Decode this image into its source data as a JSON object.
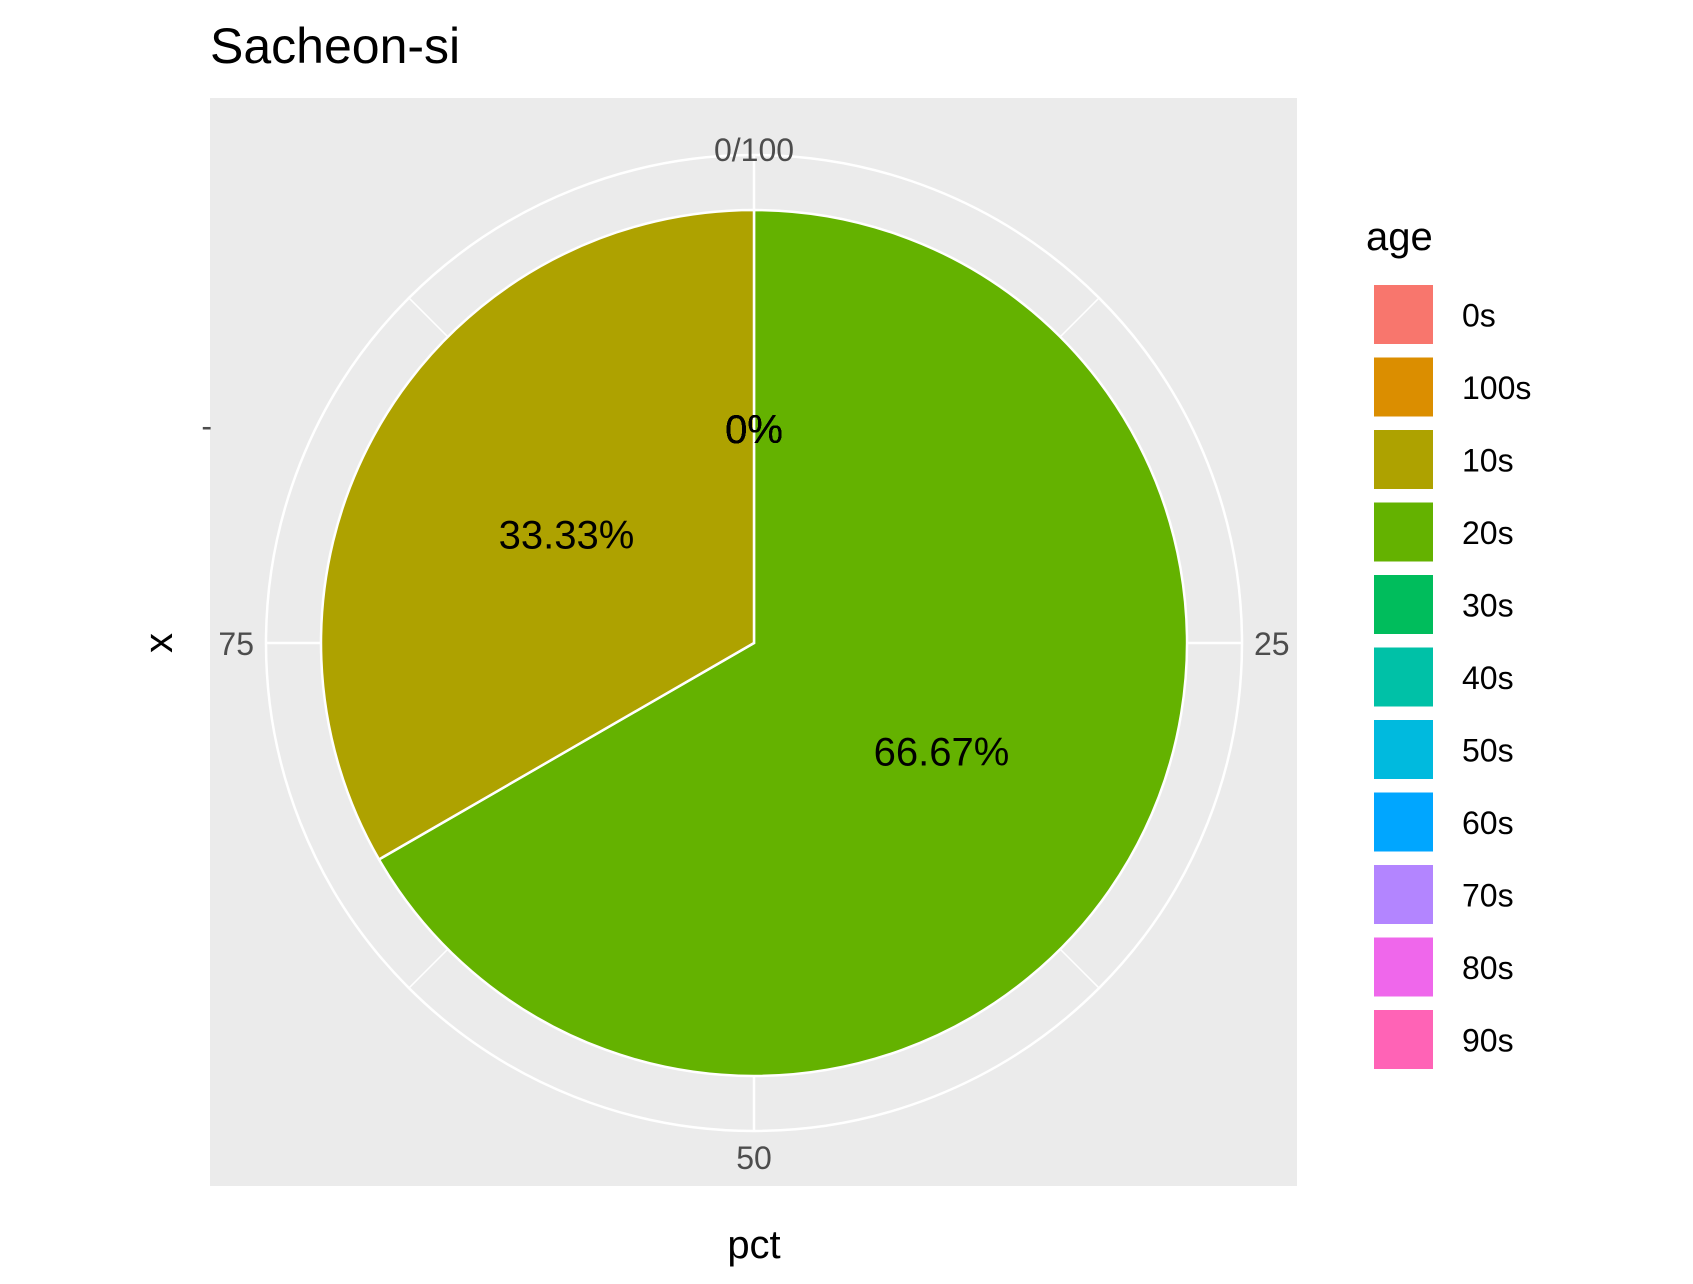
{
  "chart_data": {
    "type": "pie",
    "title": "Sacheon-si",
    "xlabel": "pct",
    "ylabel": "x",
    "y_tick_labels": [
      "-"
    ],
    "theta_ticks": [
      {
        "value": 0,
        "label": "0/100"
      },
      {
        "value": 25,
        "label": "25"
      },
      {
        "value": 50,
        "label": "50"
      },
      {
        "value": 75,
        "label": "75"
      }
    ],
    "theta_range": [
      0,
      100
    ],
    "grid": true,
    "legend": {
      "title": "age",
      "position": "right",
      "entries": [
        {
          "label": "0s",
          "color": "#F8766D"
        },
        {
          "label": "100s",
          "color": "#DB8E00"
        },
        {
          "label": "10s",
          "color": "#AEA200"
        },
        {
          "label": "20s",
          "color": "#64B200"
        },
        {
          "label": "30s",
          "color": "#00BD5C"
        },
        {
          "label": "40s",
          "color": "#00C1A7"
        },
        {
          "label": "50s",
          "color": "#00BADE"
        },
        {
          "label": "60s",
          "color": "#00A6FF"
        },
        {
          "label": "70s",
          "color": "#B385FF"
        },
        {
          "label": "80s",
          "color": "#EF67EB"
        },
        {
          "label": "90s",
          "color": "#FF63B6"
        }
      ]
    },
    "slices": [
      {
        "category": "20s",
        "value": 66.67,
        "label": "66.67%",
        "color": "#64B200"
      },
      {
        "category": "10s",
        "value": 33.33,
        "label": "33.33%",
        "color": "#AEA200"
      }
    ],
    "zero_labels": [
      "0%",
      "0%",
      "0%",
      "0%",
      "0%",
      "0%",
      "0%",
      "0%",
      "0%"
    ],
    "panel_background": "#EBEBEB",
    "grid_color": "#FFFFFF"
  }
}
